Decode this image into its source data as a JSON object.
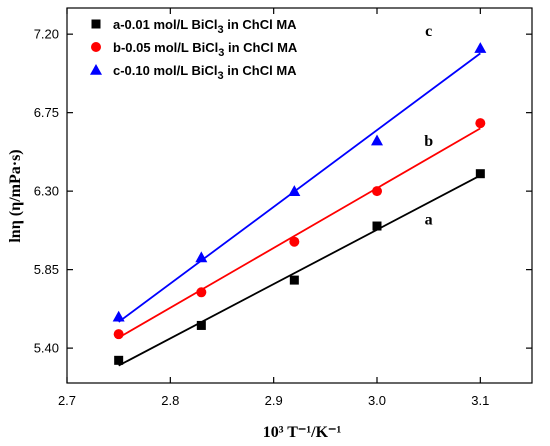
{
  "chart_data": {
    "type": "scatter",
    "xlabel": "10³ T⁻¹/K⁻¹",
    "ylabel": "lnη (η/mPa·s)",
    "xlim": [
      2.7,
      3.15
    ],
    "ylim": [
      5.2,
      7.35
    ],
    "xticks": [
      2.7,
      2.8,
      2.9,
      3.0,
      3.1
    ],
    "xtick_labels": [
      "2.7",
      "2.8",
      "2.9",
      "3.0",
      "3.1"
    ],
    "yticks": [
      5.4,
      5.85,
      6.3,
      6.75,
      7.2
    ],
    "ytick_labels": [
      "5.40",
      "5.85",
      "6.30",
      "6.75",
      "7.20"
    ],
    "grid": false,
    "legend_position": "top-left",
    "series": [
      {
        "name": "a-0.01 mol/L BiCl3 in ChCl MA",
        "legend_main": "a-0.01 mol/L BiCl",
        "legend_sub": "3",
        "legend_tail": " in ChCl MA",
        "label": "a",
        "marker": "square",
        "color": "#000000",
        "x": [
          2.75,
          2.83,
          2.92,
          3.0,
          3.1
        ],
        "y": [
          5.33,
          5.53,
          5.79,
          6.1,
          6.4
        ],
        "fit": [
          [
            2.75,
            5.3
          ],
          [
            3.1,
            6.39
          ]
        ]
      },
      {
        "name": "b-0.05 mol/L BiCl3 in ChCl MA",
        "legend_main": "b-0.05 mol/L BiCl",
        "legend_sub": "3",
        "legend_tail": " in ChCl MA",
        "label": "b",
        "marker": "circle",
        "color": "#ff0000",
        "x": [
          2.75,
          2.83,
          2.92,
          3.0,
          3.1
        ],
        "y": [
          5.48,
          5.72,
          6.01,
          6.3,
          6.69
        ],
        "fit": [
          [
            2.75,
            5.46
          ],
          [
            3.1,
            6.66
          ]
        ]
      },
      {
        "name": "c-0.10 mol/L BiCl3 in ChCl MA",
        "legend_main": "c-0.10 mol/L BiCl",
        "legend_sub": "3",
        "legend_tail": " in ChCl MA",
        "label": "c",
        "marker": "triangle",
        "color": "#0000ff",
        "x": [
          2.75,
          2.83,
          2.92,
          3.0,
          3.1
        ],
        "y": [
          5.58,
          5.92,
          6.3,
          6.59,
          7.12
        ],
        "fit": [
          [
            2.75,
            5.55
          ],
          [
            3.1,
            7.09
          ]
        ]
      }
    ]
  }
}
